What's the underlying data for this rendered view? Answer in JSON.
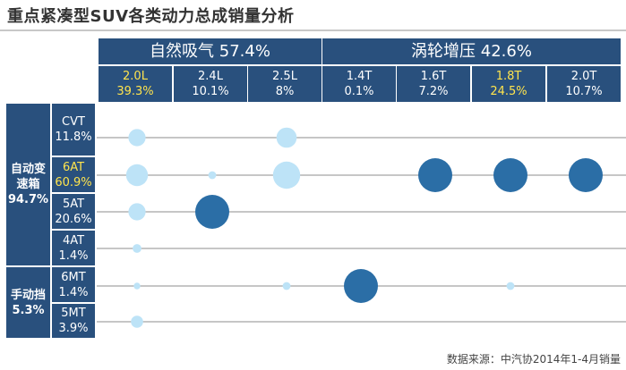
{
  "title": "重点紧凑型SUV各类动力总成销量分析",
  "source": "数据来源：中汽协2014年1-4月销量",
  "colors": {
    "header_bg": "#29507d",
    "highlight_text": "#ffe44d",
    "bubble_natural": "#bde3f7",
    "bubble_turbo": "#2b6ea6",
    "row_line": "#8c8c8c"
  },
  "groups": [
    {
      "label": "自然吸气 57.4%"
    },
    {
      "label": "涡轮增压 42.6%"
    }
  ],
  "columns": [
    {
      "name": "2.0L",
      "share": "39.3%",
      "highlight": true
    },
    {
      "name": "2.4L",
      "share": "10.1%",
      "highlight": false
    },
    {
      "name": "2.5L",
      "share": "8%",
      "highlight": false
    },
    {
      "name": "1.4T",
      "share": "0.1%",
      "highlight": false
    },
    {
      "name": "1.6T",
      "share": "7.2%",
      "highlight": false
    },
    {
      "name": "1.8T",
      "share": "24.5%",
      "highlight": true
    },
    {
      "name": "2.0T",
      "share": "10.7%",
      "highlight": false
    }
  ],
  "row_groups": [
    {
      "line1": "自动变",
      "line2": "速箱",
      "line3": "94.7%"
    },
    {
      "line1": "手动挡",
      "line2": "5.3%"
    }
  ],
  "rows": [
    {
      "name": "CVT",
      "share": "11.8%",
      "highlight": false
    },
    {
      "name": "6AT",
      "share": "60.9%",
      "highlight": true
    },
    {
      "name": "5AT",
      "share": "20.6%",
      "highlight": false
    },
    {
      "name": "4AT",
      "share": "1.4%",
      "highlight": false
    },
    {
      "name": "6MT",
      "share": "1.4%",
      "highlight": false
    },
    {
      "name": "5MT",
      "share": "3.9%",
      "highlight": false
    }
  ],
  "chart_data": {
    "type": "scatter",
    "x_categories": [
      "2.0L",
      "2.4L",
      "2.5L",
      "1.4T",
      "1.6T",
      "1.8T",
      "2.0T"
    ],
    "y_categories": [
      "CVT",
      "6AT",
      "5AT",
      "4AT",
      "6MT",
      "5MT"
    ],
    "points": [
      {
        "x": "2.0L",
        "y": "CVT",
        "size": 1.0
      },
      {
        "x": "2.5L",
        "y": "CVT",
        "size": 1.5
      },
      {
        "x": "2.0L",
        "y": "6AT",
        "size": 1.8
      },
      {
        "x": "2.4L",
        "y": "6AT",
        "size": 0.1
      },
      {
        "x": "2.5L",
        "y": "6AT",
        "size": 3.0
      },
      {
        "x": "1.6T",
        "y": "6AT",
        "size": 5.0
      },
      {
        "x": "1.8T",
        "y": "6AT",
        "size": 5.0
      },
      {
        "x": "2.0T",
        "y": "6AT",
        "size": 5.0
      },
      {
        "x": "2.0L",
        "y": "5AT",
        "size": 1.0
      },
      {
        "x": "2.4L",
        "y": "5AT",
        "size": 5.0
      },
      {
        "x": "2.0L",
        "y": "4AT",
        "size": 0.15
      },
      {
        "x": "2.0L",
        "y": "6MT",
        "size": 0.05
      },
      {
        "x": "2.5L",
        "y": "6MT",
        "size": 0.1
      },
      {
        "x": "1.4T",
        "y": "6MT",
        "size": 5.0
      },
      {
        "x": "1.8T",
        "y": "6MT",
        "size": 0.1
      },
      {
        "x": "2.0L",
        "y": "5MT",
        "size": 0.4
      }
    ],
    "grid": "horizontal",
    "legend": "none"
  }
}
